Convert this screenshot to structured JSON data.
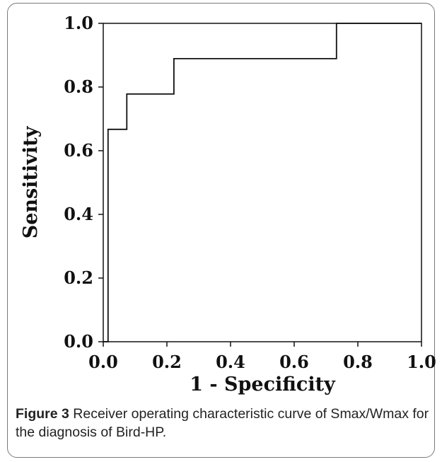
{
  "caption": {
    "label": "Figure 3",
    "text": " Receiver operating characteristic curve of Smax/Wmax for the diagnosis of Bird-HP."
  },
  "chart_data": {
    "type": "line",
    "title": "",
    "xlabel": "1 - Specificity",
    "ylabel": "Sensitivity",
    "xlim": [
      0.0,
      1.0
    ],
    "ylim": [
      0.0,
      1.0
    ],
    "xticks": [
      "0.0",
      "0.2",
      "0.4",
      "0.6",
      "0.8",
      "1.0"
    ],
    "yticks": [
      "0.0",
      "0.2",
      "0.4",
      "0.6",
      "0.8",
      "1.0"
    ],
    "grid": false,
    "legend": "none",
    "series": [
      {
        "x": [
          0.0,
          0.0,
          0.015,
          0.015,
          0.074,
          0.074,
          0.222,
          0.222,
          0.733,
          0.733,
          1.0
        ],
        "y": [
          0.0,
          0.0,
          0.0,
          0.667,
          0.667,
          0.778,
          0.778,
          0.889,
          0.889,
          1.0,
          1.0
        ]
      }
    ],
    "colors": {
      "line": "#111111",
      "axis": "#111111"
    }
  }
}
